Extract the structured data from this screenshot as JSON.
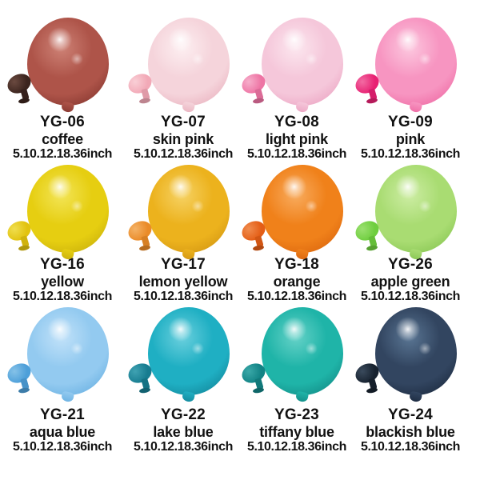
{
  "canvas": {
    "background": "#ffffff",
    "text_color": "#121212"
  },
  "grid": {
    "columns": 4,
    "rows": 3
  },
  "products": [
    {
      "code": "YG-06",
      "name": "coffee",
      "sizes": "5.10.12.18.36inch",
      "balloon_color": "#AE5449",
      "balloon_highlight": "#CE8276",
      "balloon_edge": "#8C3B33",
      "mini_color": "#3B241E",
      "mini_highlight": "#6B4A40"
    },
    {
      "code": "YG-07",
      "name": "skin pink",
      "sizes": "5.10.12.18.36inch",
      "balloon_color": "#F5D4DB",
      "balloon_highlight": "#FDEFF1",
      "balloon_edge": "#EBB7C3",
      "mini_color": "#F2A9B7",
      "mini_highlight": "#F9CFD6"
    },
    {
      "code": "YG-08",
      "name": "light pink",
      "sizes": "5.10.12.18.36inch",
      "balloon_color": "#F5C7DA",
      "balloon_highlight": "#FCE7EF",
      "balloon_edge": "#EDA9C6",
      "mini_color": "#EE74A4",
      "mini_highlight": "#F6AECB"
    },
    {
      "code": "YG-09",
      "name": "pink",
      "sizes": "5.10.12.18.36inch",
      "balloon_color": "#F795C1",
      "balloon_highlight": "#FCC8DF",
      "balloon_edge": "#F070A8",
      "mini_color": "#E82173",
      "mini_highlight": "#F26BA3"
    },
    {
      "code": "YG-16",
      "name": "yellow",
      "sizes": "5.10.12.18.36inch",
      "balloon_color": "#E6CE11",
      "balloon_highlight": "#F3E557",
      "balloon_edge": "#CDB40C",
      "mini_color": "#E2C30F",
      "mini_highlight": "#F0DE4E"
    },
    {
      "code": "YG-17",
      "name": "lemon yellow",
      "sizes": "5.10.12.18.36inch",
      "balloon_color": "#ECB21D",
      "balloon_highlight": "#F6D264",
      "balloon_edge": "#D69A14",
      "mini_color": "#EA8B28",
      "mini_highlight": "#F4B266"
    },
    {
      "code": "YG-18",
      "name": "orange",
      "sizes": "5.10.12.18.36inch",
      "balloon_color": "#F0811A",
      "balloon_highlight": "#F8AC5F",
      "balloon_edge": "#DE6A10",
      "mini_color": "#E45E16",
      "mini_highlight": "#F08C4E"
    },
    {
      "code": "YG-26",
      "name": "apple green",
      "sizes": "5.10.12.18.36inch",
      "balloon_color": "#A9DC72",
      "balloon_highlight": "#CDEDA4",
      "balloon_edge": "#8CC957",
      "mini_color": "#6FCE3F",
      "mini_highlight": "#9BE070"
    },
    {
      "code": "YG-21",
      "name": "aqua blue",
      "sizes": "5.10.12.18.36inch",
      "balloon_color": "#93CAF0",
      "balloon_highlight": "#C2E2F9",
      "balloon_edge": "#6FB4E4",
      "mini_color": "#4D9FD9",
      "mini_highlight": "#85C2E8"
    },
    {
      "code": "YG-22",
      "name": "lake blue",
      "sizes": "5.10.12.18.36inch",
      "balloon_color": "#1FAFC3",
      "balloon_highlight": "#6BD0DE",
      "balloon_edge": "#148CA0",
      "mini_color": "#177C90",
      "mini_highlight": "#3FA2B2"
    },
    {
      "code": "YG-23",
      "name": "tiffany blue",
      "sizes": "5.10.12.18.36inch",
      "balloon_color": "#1FB4A8",
      "balloon_highlight": "#66D2C8",
      "balloon_edge": "#14918B",
      "mini_color": "#128385",
      "mini_highlight": "#3AA8A8"
    },
    {
      "code": "YG-24",
      "name": "blackish blue",
      "sizes": "5.10.12.18.36inch",
      "balloon_color": "#324560",
      "balloon_highlight": "#5A7694",
      "balloon_edge": "#1F2E44",
      "mini_color": "#17222F",
      "mini_highlight": "#3A4A5C"
    }
  ]
}
